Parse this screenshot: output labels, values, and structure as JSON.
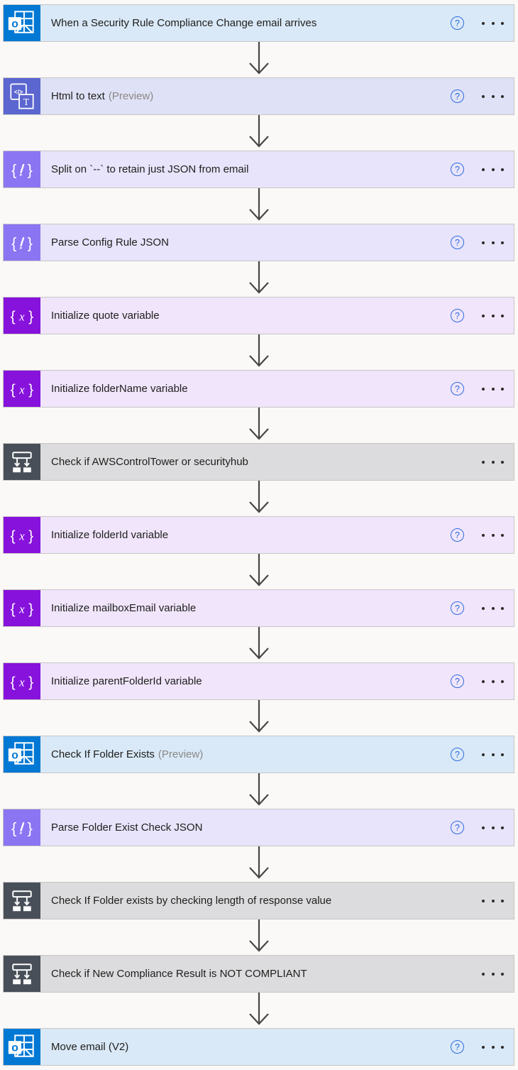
{
  "app": {
    "name": "Flow designer canvas"
  },
  "palette": {
    "canvas_bg": "#faf9f8",
    "card_border": "#c8c6c4",
    "arrow_color": "#484644",
    "title_color": "#1f1e1d",
    "preview_color": "#8a8886",
    "help_color": "#2e6be0",
    "ellipsis_color": "#2c2a28",
    "types": {
      "outlook": {
        "icon_bg": "#0078d4",
        "row_bg": "#d9e9f7"
      },
      "html-to-text": {
        "icon_bg": "#5b66d0",
        "row_bg": "#dfe2f6"
      },
      "data-operations": {
        "icon_bg": "#8b75f3",
        "row_bg": "#e8e4fb"
      },
      "variable": {
        "icon_bg": "#8712dc",
        "row_bg": "#f0e5fb"
      },
      "condition": {
        "icon_bg": "#484f58",
        "row_bg": "#dcdcde"
      }
    }
  },
  "controls": {
    "help_glyph": "?"
  },
  "steps": [
    {
      "title": "When a Security Rule Compliance Change email arrives",
      "suffix": "",
      "type": "outlook",
      "icon": "outlook-icon",
      "has_help": true
    },
    {
      "title": "Html to text",
      "suffix": "(Preview)",
      "type": "html-to-text",
      "icon": "html-to-text-icon",
      "has_help": true
    },
    {
      "title": "Split on `--` to retain just JSON from email",
      "suffix": "",
      "type": "data-operations",
      "icon": "data-operations-icon",
      "has_help": true
    },
    {
      "title": "Parse Config Rule JSON",
      "suffix": "",
      "type": "data-operations",
      "icon": "data-operations-icon",
      "has_help": true
    },
    {
      "title": "Initialize quote variable",
      "suffix": "",
      "type": "variable",
      "icon": "variable-icon",
      "has_help": true
    },
    {
      "title": "Initialize folderName variable",
      "suffix": "",
      "type": "variable",
      "icon": "variable-icon",
      "has_help": true
    },
    {
      "title": "Check if AWSControlTower or securityhub",
      "suffix": "",
      "type": "condition",
      "icon": "condition-icon",
      "has_help": false
    },
    {
      "title": "Initialize folderId variable",
      "suffix": "",
      "type": "variable",
      "icon": "variable-icon",
      "has_help": true
    },
    {
      "title": "Initialize mailboxEmail variable",
      "suffix": "",
      "type": "variable",
      "icon": "variable-icon",
      "has_help": true
    },
    {
      "title": "Initialize parentFolderId variable",
      "suffix": "",
      "type": "variable",
      "icon": "variable-icon",
      "has_help": true
    },
    {
      "title": "Check If Folder Exists",
      "suffix": "(Preview)",
      "type": "outlook",
      "icon": "outlook-icon",
      "has_help": true
    },
    {
      "title": "Parse Folder Exist Check JSON",
      "suffix": "",
      "type": "data-operations",
      "icon": "data-operations-icon",
      "has_help": true
    },
    {
      "title": "Check If Folder exists by checking length of response value",
      "suffix": "",
      "type": "condition",
      "icon": "condition-icon",
      "has_help": false
    },
    {
      "title": "Check if New Compliance Result is NOT COMPLIANT",
      "suffix": "",
      "type": "condition",
      "icon": "condition-icon",
      "has_help": false
    },
    {
      "title": "Move email (V2)",
      "suffix": "",
      "type": "outlook",
      "icon": "outlook-icon",
      "has_help": true
    }
  ]
}
